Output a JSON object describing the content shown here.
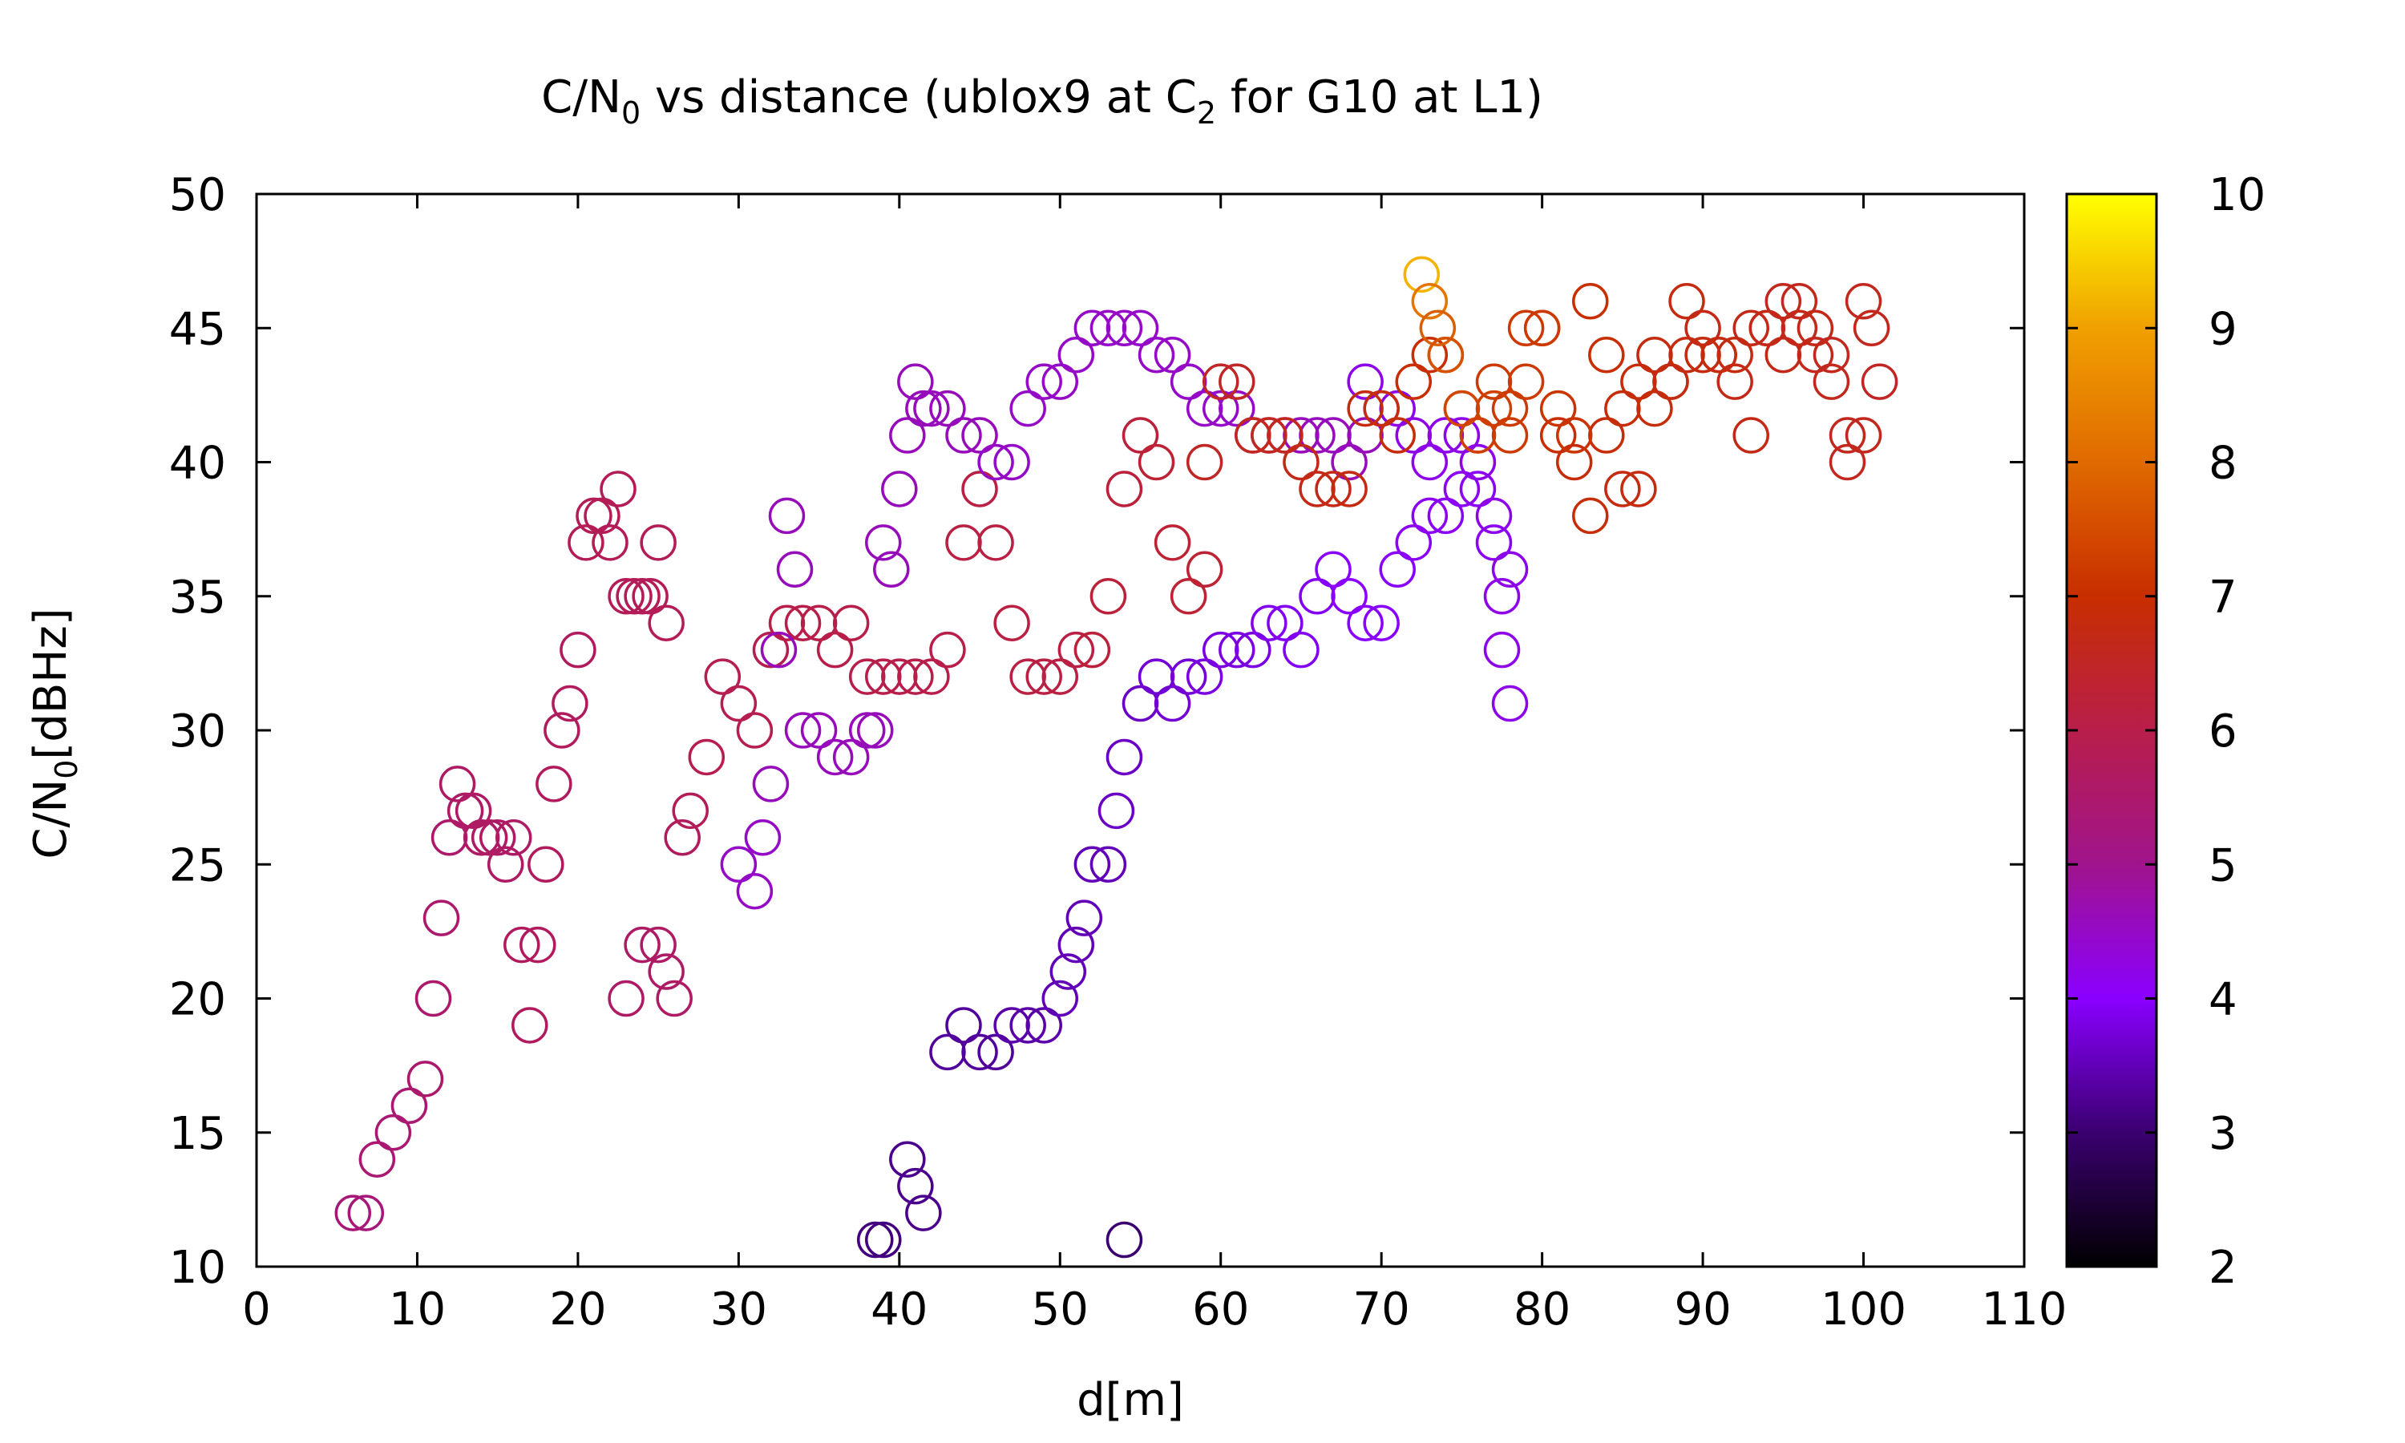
{
  "chart_data": {
    "type": "scatter",
    "title": {
      "main": "C/N",
      "sub0": "0",
      "mid": " vs distance (ublox9 at C",
      "sub2": "2",
      "tail": " for G10 at L1)"
    },
    "xlabel": "d[m]",
    "ylabel": {
      "main": "C/N",
      "sub": "0",
      "tail": "[dBHz]"
    },
    "xlim": [
      0,
      110
    ],
    "ylim": [
      10,
      50
    ],
    "xticks": [
      0,
      10,
      20,
      30,
      40,
      50,
      60,
      70,
      80,
      90,
      100,
      110
    ],
    "yticks": [
      10,
      15,
      20,
      25,
      30,
      35,
      40,
      45,
      50
    ],
    "colorbar": {
      "range": [
        2,
        10
      ],
      "ticks": [
        2,
        3,
        4,
        5,
        6,
        7,
        8,
        9,
        10
      ],
      "palette": [
        "#000000",
        "#3a0070",
        "#8a00ff",
        "#a0148c",
        "#b81e4a",
        "#c82e00",
        "#e06a00",
        "#f0a000",
        "#ffff00"
      ]
    },
    "marker": "open-circle",
    "grid": false,
    "legend": "colorbar-right",
    "series": [
      {
        "x": [
          6,
          6.8,
          7.5,
          8.5,
          9.5,
          10.5,
          11,
          11.5,
          12,
          12.5,
          13,
          13.5,
          14,
          14.5,
          15,
          15.5,
          16,
          16.5,
          17,
          17.5,
          18,
          18.5,
          19,
          19.5,
          20,
          20.5,
          21,
          21.5,
          22,
          22.5,
          23,
          23.5,
          24,
          24.5,
          25,
          25.5
        ],
        "y": [
          12,
          12,
          14,
          15,
          16,
          17,
          20,
          23,
          26,
          28,
          27,
          27,
          26,
          26,
          26,
          25,
          26,
          22,
          19,
          22,
          25,
          28,
          30,
          31,
          33,
          37,
          38,
          38,
          37,
          39,
          35,
          35,
          35,
          35,
          37,
          34
        ],
        "c": [
          5.3,
          5.3,
          5.4,
          5.4,
          5.4,
          5.5,
          5.5,
          5.5,
          5.5,
          5.6,
          5.6,
          5.6,
          5.6,
          5.6,
          5.6,
          5.6,
          5.6,
          5.7,
          5.7,
          5.7,
          5.7,
          5.7,
          5.7,
          5.7,
          5.7,
          5.8,
          5.8,
          5.8,
          5.8,
          5.8,
          5.8,
          5.8,
          5.8,
          5.8,
          5.8,
          5.8
        ]
      },
      {
        "x": [
          23,
          24,
          25,
          25.5,
          26,
          26.5,
          27,
          28,
          29,
          30,
          31,
          32,
          33,
          34,
          35,
          36,
          37,
          38,
          39,
          40,
          41,
          42,
          43,
          44,
          45,
          46,
          47,
          48,
          49,
          50,
          51,
          52,
          53,
          54,
          55,
          56,
          57,
          58,
          59
        ],
        "y": [
          20,
          22,
          22,
          21,
          20,
          26,
          27,
          29,
          32,
          31,
          30,
          33,
          34,
          34,
          34,
          33,
          34,
          32,
          32,
          32,
          32,
          32,
          33,
          37,
          39,
          37,
          34,
          32,
          32,
          32,
          33,
          33,
          35,
          39,
          41,
          40,
          37,
          35,
          36
        ],
        "c": [
          5.6,
          5.6,
          5.6,
          5.6,
          5.6,
          5.7,
          5.8,
          5.9,
          5.9,
          5.9,
          5.9,
          5.9,
          6.0,
          6.0,
          6.0,
          6.0,
          6.0,
          6.0,
          6.0,
          6.0,
          6.0,
          6.0,
          6.0,
          6.1,
          6.1,
          6.1,
          6.1,
          6.1,
          6.1,
          6.1,
          6.1,
          6.2,
          6.2,
          6.2,
          6.2,
          6.3,
          6.3,
          6.3,
          6.3
        ]
      },
      {
        "x": [
          30,
          31,
          31.5,
          32,
          32.5,
          33,
          33.5,
          34,
          35,
          36,
          37,
          38,
          38.5,
          39,
          39.5,
          40,
          40.5,
          41,
          41.5,
          42,
          43,
          44,
          45,
          46,
          47,
          48,
          49,
          50,
          51,
          52,
          53,
          54,
          55,
          56,
          57,
          58,
          59,
          60,
          61,
          62,
          63,
          64,
          65,
          66,
          67,
          68,
          69
        ],
        "y": [
          25,
          24,
          26,
          28,
          33,
          38,
          36,
          30,
          30,
          29,
          29,
          30,
          30,
          37,
          36,
          39,
          41,
          43,
          42,
          42,
          42,
          41,
          41,
          40,
          40,
          42,
          43,
          43,
          44,
          45,
          45,
          45,
          45,
          44,
          44,
          43,
          42,
          42,
          42,
          41,
          41,
          41,
          41,
          41,
          41,
          40,
          41
        ],
        "c": [
          4.5,
          4.5,
          4.5,
          4.6,
          4.6,
          4.6,
          4.6,
          4.6,
          4.6,
          4.6,
          4.6,
          4.6,
          4.6,
          4.6,
          4.6,
          4.6,
          4.6,
          4.6,
          4.6,
          4.6,
          4.6,
          4.6,
          4.6,
          4.5,
          4.5,
          4.5,
          4.5,
          4.5,
          4.5,
          4.5,
          4.5,
          4.5,
          4.5,
          4.5,
          4.5,
          4.5,
          4.5,
          4.5,
          4.5,
          4.6,
          4.6,
          4.6,
          4.6,
          4.6,
          4.6,
          4.6,
          4.6
        ]
      },
      {
        "x": [
          38.5,
          39,
          40.5,
          41,
          41.5,
          43,
          44,
          45,
          46,
          47,
          48,
          49,
          50,
          50.5,
          51,
          51.5,
          52,
          53,
          53.5,
          54,
          55,
          56,
          57,
          58,
          59,
          60,
          61,
          62,
          63,
          64,
          65,
          66,
          67,
          68,
          69,
          70,
          71,
          72,
          73,
          74,
          75,
          76,
          77,
          77.5,
          78
        ],
        "y": [
          11,
          11,
          14,
          13,
          12,
          18,
          19,
          18,
          18,
          19,
          19,
          19,
          20,
          21,
          22,
          23,
          25,
          25,
          27,
          29,
          31,
          32,
          31,
          32,
          32,
          33,
          33,
          33,
          34,
          34,
          33,
          35,
          36,
          35,
          34,
          34,
          36,
          37,
          38,
          38,
          39,
          39,
          37,
          33,
          31
        ],
        "c": [
          3.1,
          3.1,
          3.2,
          3.2,
          3.2,
          3.3,
          3.3,
          3.3,
          3.3,
          3.4,
          3.4,
          3.4,
          3.5,
          3.5,
          3.5,
          3.5,
          3.5,
          3.5,
          3.6,
          3.6,
          3.6,
          3.7,
          3.7,
          3.7,
          3.8,
          3.8,
          3.8,
          3.8,
          3.9,
          3.9,
          3.9,
          3.9,
          4.0,
          4.0,
          4.0,
          4.0,
          4.0,
          4.1,
          4.1,
          4.1,
          4.1,
          4.1,
          4.1,
          4.2,
          4.2
        ]
      },
      {
        "x": [
          54,
          69,
          70,
          71,
          72,
          73,
          74,
          75,
          76,
          77,
          77.5,
          78
        ],
        "y": [
          11,
          43,
          42,
          42,
          41,
          40,
          41,
          41,
          40,
          38,
          35,
          36
        ],
        "c": [
          3.0,
          4.2,
          4.2,
          4.2,
          4.2,
          4.2,
          4.2,
          4.2,
          4.2,
          4.2,
          4.2,
          4.2
        ]
      },
      {
        "x": [
          59,
          60,
          61,
          62,
          63,
          64,
          65,
          66,
          67,
          68,
          69,
          70,
          71,
          72,
          73,
          74,
          75,
          76,
          77,
          78,
          79,
          80,
          81,
          82,
          83,
          84,
          85,
          86,
          87,
          88,
          89,
          90,
          91,
          92,
          93,
          94,
          95,
          96,
          97,
          98,
          99,
          100,
          101
        ],
        "y": [
          40,
          43,
          43,
          41,
          41,
          41,
          40,
          39,
          39,
          39,
          42,
          42,
          41,
          43,
          44,
          44,
          42,
          41,
          43,
          42,
          45,
          45,
          41,
          40,
          38,
          41,
          39,
          39,
          44,
          43,
          46,
          45,
          44,
          43,
          41,
          45,
          46,
          46,
          44,
          43,
          40,
          41,
          43
        ],
        "c": [
          6.5,
          6.5,
          6.5,
          6.6,
          6.6,
          6.6,
          6.7,
          6.7,
          6.7,
          6.8,
          6.8,
          6.9,
          6.9,
          7.0,
          7.0,
          7.1,
          7.1,
          7.1,
          7.2,
          7.2,
          7.2,
          7.2,
          7.0,
          6.9,
          6.9,
          6.9,
          6.8,
          6.8,
          6.8,
          6.8,
          6.8,
          6.7,
          6.7,
          6.7,
          6.7,
          6.7,
          6.6,
          6.6,
          6.6,
          6.6,
          6.6,
          6.6,
          6.5
        ]
      },
      {
        "x": [
          72.5,
          73,
          73.5,
          74,
          75,
          76,
          77,
          78,
          79,
          80,
          81,
          82,
          83,
          84,
          85,
          86,
          87,
          88,
          89,
          90,
          91,
          92,
          93,
          94,
          95,
          96,
          97,
          98,
          99,
          100,
          100.5
        ],
        "y": [
          47,
          46,
          45,
          44,
          42,
          41,
          42,
          41,
          43,
          45,
          42,
          41,
          46,
          44,
          42,
          43,
          42,
          43,
          44,
          44,
          44,
          44,
          45,
          45,
          44,
          45,
          45,
          44,
          41,
          46,
          45
        ],
        "c": [
          9.2,
          8.2,
          7.8,
          7.6,
          7.4,
          7.3,
          7.3,
          7.2,
          7.2,
          7.2,
          7.1,
          7.1,
          7.0,
          7.0,
          6.9,
          6.9,
          6.9,
          6.8,
          6.8,
          6.8,
          6.8,
          6.8,
          6.7,
          6.7,
          6.7,
          6.7,
          6.7,
          6.6,
          6.6,
          6.6,
          6.6
        ]
      }
    ]
  }
}
